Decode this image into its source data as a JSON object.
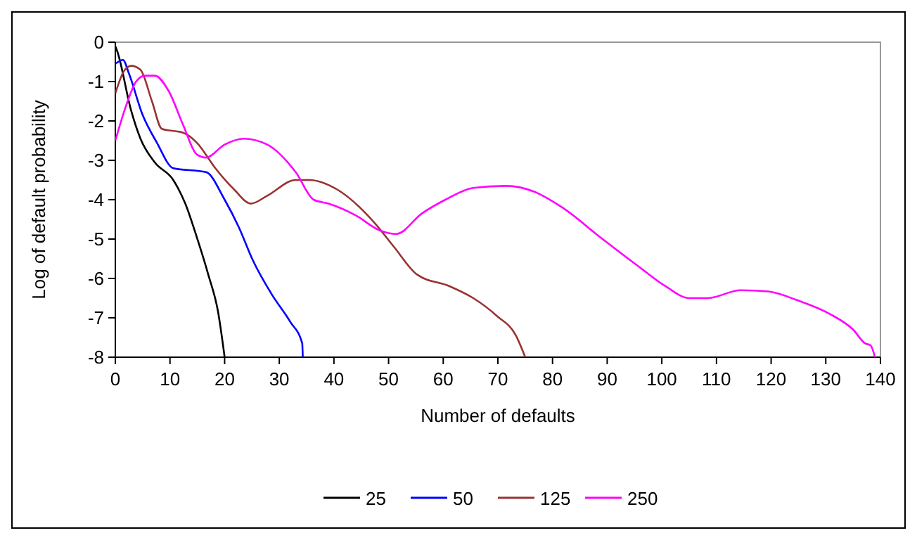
{
  "chart_data": {
    "type": "line",
    "xlabel": "Number of defaults",
    "ylabel": "Log of default probability",
    "xlim": [
      0,
      140
    ],
    "ylim": [
      -8,
      0
    ],
    "xticks": [
      0,
      10,
      20,
      30,
      40,
      50,
      60,
      70,
      80,
      90,
      100,
      110,
      120,
      130,
      140
    ],
    "yticks": [
      -8,
      -7,
      -6,
      -5,
      -4,
      -3,
      -2,
      -1,
      0
    ],
    "legend": "bottom",
    "line_style": "solid",
    "series": [
      {
        "name": "25",
        "color": "#000000",
        "x": [
          0,
          0.4,
          2.9,
          4.6,
          7.2,
          10.6,
          12.8,
          14.9,
          17,
          18.8,
          20
        ],
        "values": [
          -0.1,
          -0.25,
          -1.74,
          -2.45,
          -3.05,
          -3.5,
          -4.1,
          -4.95,
          -5.9,
          -6.85,
          -8
        ]
      },
      {
        "name": "50",
        "color": "#0000ff",
        "x": [
          0,
          1.4,
          2.5,
          5,
          7.6,
          10.6,
          16.6,
          20,
          22.6,
          25.2,
          28.6,
          32,
          34.2,
          34.3
        ],
        "values": [
          -0.55,
          -0.45,
          -0.8,
          -1.85,
          -2.55,
          -3.2,
          -3.3,
          -4,
          -4.7,
          -5.55,
          -6.4,
          -7.1,
          -7.65,
          -8
        ]
      },
      {
        "name": "125",
        "color": "#993333",
        "x": [
          0,
          1.6,
          2.9,
          4.6,
          6.7,
          8.5,
          12.4,
          14.9,
          18.3,
          21.8,
          24.8,
          27.8,
          33,
          35.5,
          40.7,
          47.5,
          51,
          55.2,
          61.2,
          65.5,
          69.8,
          73.3,
          75
        ],
        "values": [
          -1.3,
          -0.73,
          -0.6,
          -0.7,
          -1.5,
          -2.2,
          -2.3,
          -2.55,
          -3.2,
          -3.75,
          -4.1,
          -3.9,
          -3.5,
          -3.5,
          -3.75,
          -4.6,
          -5.2,
          -5.9,
          -6.2,
          -6.5,
          -6.95,
          -7.45,
          -8
        ]
      },
      {
        "name": "250",
        "color": "#ff00ff",
        "x": [
          0,
          2,
          3.8,
          5.4,
          7.2,
          9.8,
          12.4,
          14.9,
          16.6,
          20,
          23.5,
          27.8,
          33,
          36.3,
          39,
          44,
          48.4,
          51.4,
          56.1,
          60.4,
          65.5,
          71.5,
          76.7,
          81.8,
          88.7,
          95.5,
          100.7,
          105,
          108.4,
          114.4,
          119.5,
          124.7,
          130.7,
          135,
          137.2,
          138.2,
          139
        ],
        "values": [
          -2.5,
          -1.6,
          -1,
          -0.85,
          -0.85,
          -1.25,
          -2.1,
          -2.85,
          -2.93,
          -2.6,
          -2.45,
          -2.6,
          -3.3,
          -4,
          -4.1,
          -4.4,
          -4.78,
          -4.87,
          -4.35,
          -4,
          -3.7,
          -3.65,
          -3.8,
          -4.2,
          -4.95,
          -5.67,
          -6.2,
          -6.5,
          -6.5,
          -6.3,
          -6.33,
          -6.55,
          -6.9,
          -7.3,
          -7.65,
          -7.7,
          -8
        ]
      }
    ]
  }
}
